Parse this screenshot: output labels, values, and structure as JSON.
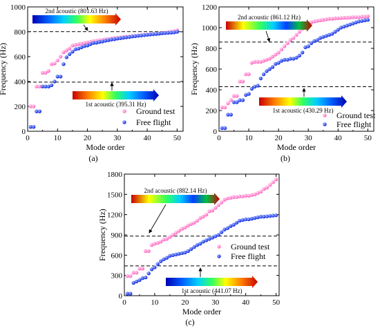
{
  "chart_data": [
    {
      "type": "scatter",
      "panel_label": "(a)",
      "xlabel": "Mode order",
      "ylabel": "Frequency (Hz)",
      "xlim": [
        0,
        52
      ],
      "ylim": [
        0,
        1000
      ],
      "xticks": [
        0,
        10,
        20,
        30,
        40,
        50
      ],
      "yticks": [
        0,
        200,
        400,
        600,
        800,
        1000
      ],
      "grid": false,
      "legend_position": "bottom-right",
      "series": [
        {
          "name": "Ground test",
          "color": "#ff77c8",
          "x": [
            1,
            2,
            3,
            4,
            5,
            6,
            7,
            8,
            9,
            10,
            11,
            12,
            13,
            14,
            15,
            16,
            17,
            18,
            19,
            20,
            21,
            22,
            23,
            24,
            25,
            26,
            27,
            28,
            29,
            30,
            31,
            32,
            33,
            34,
            35,
            36,
            37,
            38,
            39,
            40,
            41,
            42,
            43,
            44,
            45,
            46,
            47,
            48,
            49,
            50
          ],
          "values": [
            200,
            200,
            360,
            360,
            470,
            470,
            485,
            540,
            545,
            570,
            600,
            635,
            650,
            665,
            690,
            695,
            700,
            705,
            710,
            715,
            720,
            725,
            728,
            732,
            735,
            740,
            742,
            746,
            750,
            752,
            755,
            758,
            760,
            763,
            766,
            768,
            770,
            773,
            776,
            778,
            780,
            783,
            786,
            788,
            790,
            793,
            796,
            800,
            805,
            812
          ]
        },
        {
          "name": "Free flight",
          "color": "#2448ff",
          "x": [
            1,
            2,
            3,
            4,
            5,
            6,
            7,
            8,
            9,
            10,
            11,
            12,
            13,
            14,
            15,
            16,
            17,
            18,
            19,
            20,
            21,
            22,
            23,
            24,
            25,
            26,
            27,
            28,
            29,
            30,
            31,
            32,
            33,
            34,
            35,
            36,
            37,
            38,
            39,
            40,
            41,
            42,
            43,
            44,
            45,
            46,
            47,
            48,
            49,
            50
          ],
          "values": [
            35,
            35,
            160,
            160,
            360,
            360,
            360,
            370,
            400,
            440,
            440,
            540,
            595,
            620,
            640,
            660,
            665,
            675,
            685,
            690,
            700,
            710,
            712,
            718,
            722,
            728,
            732,
            738,
            740,
            745,
            748,
            752,
            755,
            758,
            762,
            765,
            768,
            770,
            773,
            776,
            778,
            780,
            782,
            785,
            788,
            790,
            792,
            793,
            795,
            800
          ]
        }
      ],
      "reference_lines": [
        {
          "y": 801.63,
          "label": "2nd acoustic (801.63 Hz)"
        },
        {
          "y": 395.31,
          "label": "1st acoustic (395.31 Hz)"
        }
      ]
    },
    {
      "type": "scatter",
      "panel_label": "(b)",
      "xlabel": "Mode order",
      "ylabel": "Frequency (Hz)",
      "xlim": [
        0,
        52
      ],
      "ylim": [
        0,
        1200
      ],
      "xticks": [
        0,
        10,
        20,
        30,
        40,
        50
      ],
      "yticks": [
        0,
        200,
        400,
        600,
        800,
        1000,
        1200
      ],
      "grid": false,
      "legend_position": "bottom-right",
      "series": [
        {
          "name": "Ground test",
          "color": "#ff77c8",
          "x": [
            1,
            2,
            3,
            4,
            5,
            6,
            7,
            8,
            9,
            10,
            11,
            12,
            13,
            14,
            15,
            16,
            17,
            18,
            19,
            20,
            21,
            22,
            23,
            24,
            25,
            26,
            27,
            28,
            29,
            30,
            31,
            32,
            33,
            34,
            35,
            36,
            37,
            38,
            39,
            40,
            41,
            42,
            43,
            44,
            45,
            46,
            47,
            48,
            49,
            50
          ],
          "values": [
            230,
            230,
            270,
            300,
            340,
            340,
            480,
            480,
            550,
            550,
            660,
            670,
            670,
            670,
            680,
            690,
            700,
            720,
            740,
            760,
            790,
            820,
            850,
            880,
            900,
            930,
            960,
            990,
            1000,
            1040,
            1050,
            1060,
            1065,
            1070,
            1075,
            1080,
            1085,
            1085,
            1090,
            1090,
            1092,
            1095,
            1095,
            1098,
            1100,
            1100,
            1100,
            1105,
            1105,
            1110
          ]
        },
        {
          "name": "Free flight",
          "color": "#2448ff",
          "x": [
            1,
            2,
            3,
            4,
            5,
            6,
            7,
            8,
            9,
            10,
            11,
            12,
            13,
            14,
            15,
            16,
            17,
            18,
            19,
            20,
            21,
            22,
            23,
            24,
            25,
            26,
            27,
            28,
            29,
            30,
            31,
            32,
            33,
            34,
            35,
            36,
            37,
            38,
            39,
            40,
            41,
            42,
            43,
            44,
            45,
            46,
            47,
            48,
            49,
            50
          ],
          "values": [
            30,
            30,
            160,
            160,
            280,
            280,
            300,
            300,
            350,
            360,
            410,
            430,
            440,
            510,
            550,
            580,
            600,
            620,
            650,
            660,
            680,
            690,
            690,
            700,
            700,
            710,
            730,
            760,
            810,
            820,
            850,
            870,
            880,
            900,
            910,
            920,
            930,
            940,
            960,
            980,
            1000,
            1010,
            1020,
            1030,
            1040,
            1050,
            1060,
            1065,
            1070,
            1075
          ]
        }
      ],
      "reference_lines": [
        {
          "y": 861.12,
          "label": "2nd acoustic (861.12 Hz)"
        },
        {
          "y": 430.29,
          "label": "1st acoustic (430.29 Hz)"
        }
      ]
    },
    {
      "type": "scatter",
      "panel_label": "(c)",
      "xlabel": "Mode order",
      "ylabel": "Frequency (Hz)",
      "xlim": [
        0,
        51
      ],
      "ylim": [
        0,
        1800
      ],
      "xticks": [
        0,
        10,
        20,
        30,
        40,
        50
      ],
      "yticks": [
        0,
        300,
        600,
        900,
        1200,
        1500,
        1800
      ],
      "grid": false,
      "legend_position": "center-right",
      "series": [
        {
          "name": "Ground test",
          "color": "#ff77c8",
          "x": [
            1,
            2,
            3,
            4,
            5,
            6,
            7,
            8,
            9,
            10,
            11,
            12,
            13,
            14,
            15,
            16,
            17,
            18,
            19,
            20,
            21,
            22,
            23,
            24,
            25,
            26,
            27,
            28,
            29,
            30,
            31,
            32,
            33,
            34,
            35,
            36,
            37,
            38,
            39,
            40,
            41,
            42,
            43,
            44,
            45,
            46,
            47,
            48,
            49,
            50
          ],
          "values": [
            290,
            290,
            340,
            340,
            400,
            400,
            660,
            660,
            750,
            770,
            780,
            800,
            830,
            840,
            870,
            900,
            930,
            960,
            990,
            1010,
            1040,
            1060,
            1080,
            1110,
            1150,
            1170,
            1200,
            1250,
            1260,
            1300,
            1340,
            1380,
            1420,
            1440,
            1450,
            1460,
            1460,
            1470,
            1470,
            1480,
            1480,
            1490,
            1500,
            1520,
            1540,
            1580,
            1600,
            1640,
            1680,
            1720
          ]
        },
        {
          "name": "Free flight",
          "color": "#2448ff",
          "x": [
            1,
            2,
            3,
            4,
            5,
            6,
            7,
            8,
            9,
            10,
            11,
            12,
            13,
            14,
            15,
            16,
            17,
            18,
            19,
            20,
            21,
            22,
            23,
            24,
            25,
            26,
            27,
            28,
            29,
            30,
            31,
            32,
            33,
            34,
            35,
            36,
            37,
            38,
            39,
            40,
            41,
            42,
            43,
            44,
            45,
            46,
            47,
            48,
            49,
            50
          ],
          "values": [
            30,
            30,
            190,
            210,
            230,
            260,
            270,
            330,
            390,
            420,
            470,
            510,
            540,
            560,
            590,
            600,
            610,
            620,
            630,
            640,
            660,
            690,
            720,
            750,
            770,
            800,
            820,
            840,
            860,
            880,
            900,
            940,
            980,
            1000,
            1030,
            1050,
            1080,
            1110,
            1120,
            1130,
            1130,
            1140,
            1150,
            1160,
            1170,
            1170,
            1175,
            1180,
            1185,
            1190
          ]
        }
      ],
      "reference_lines": [
        {
          "y": 882.14,
          "label": "2nd acoustic (882.14 Hz)"
        },
        {
          "y": 441.07,
          "label": "1st acoustic (441.07 Hz)"
        }
      ]
    }
  ]
}
